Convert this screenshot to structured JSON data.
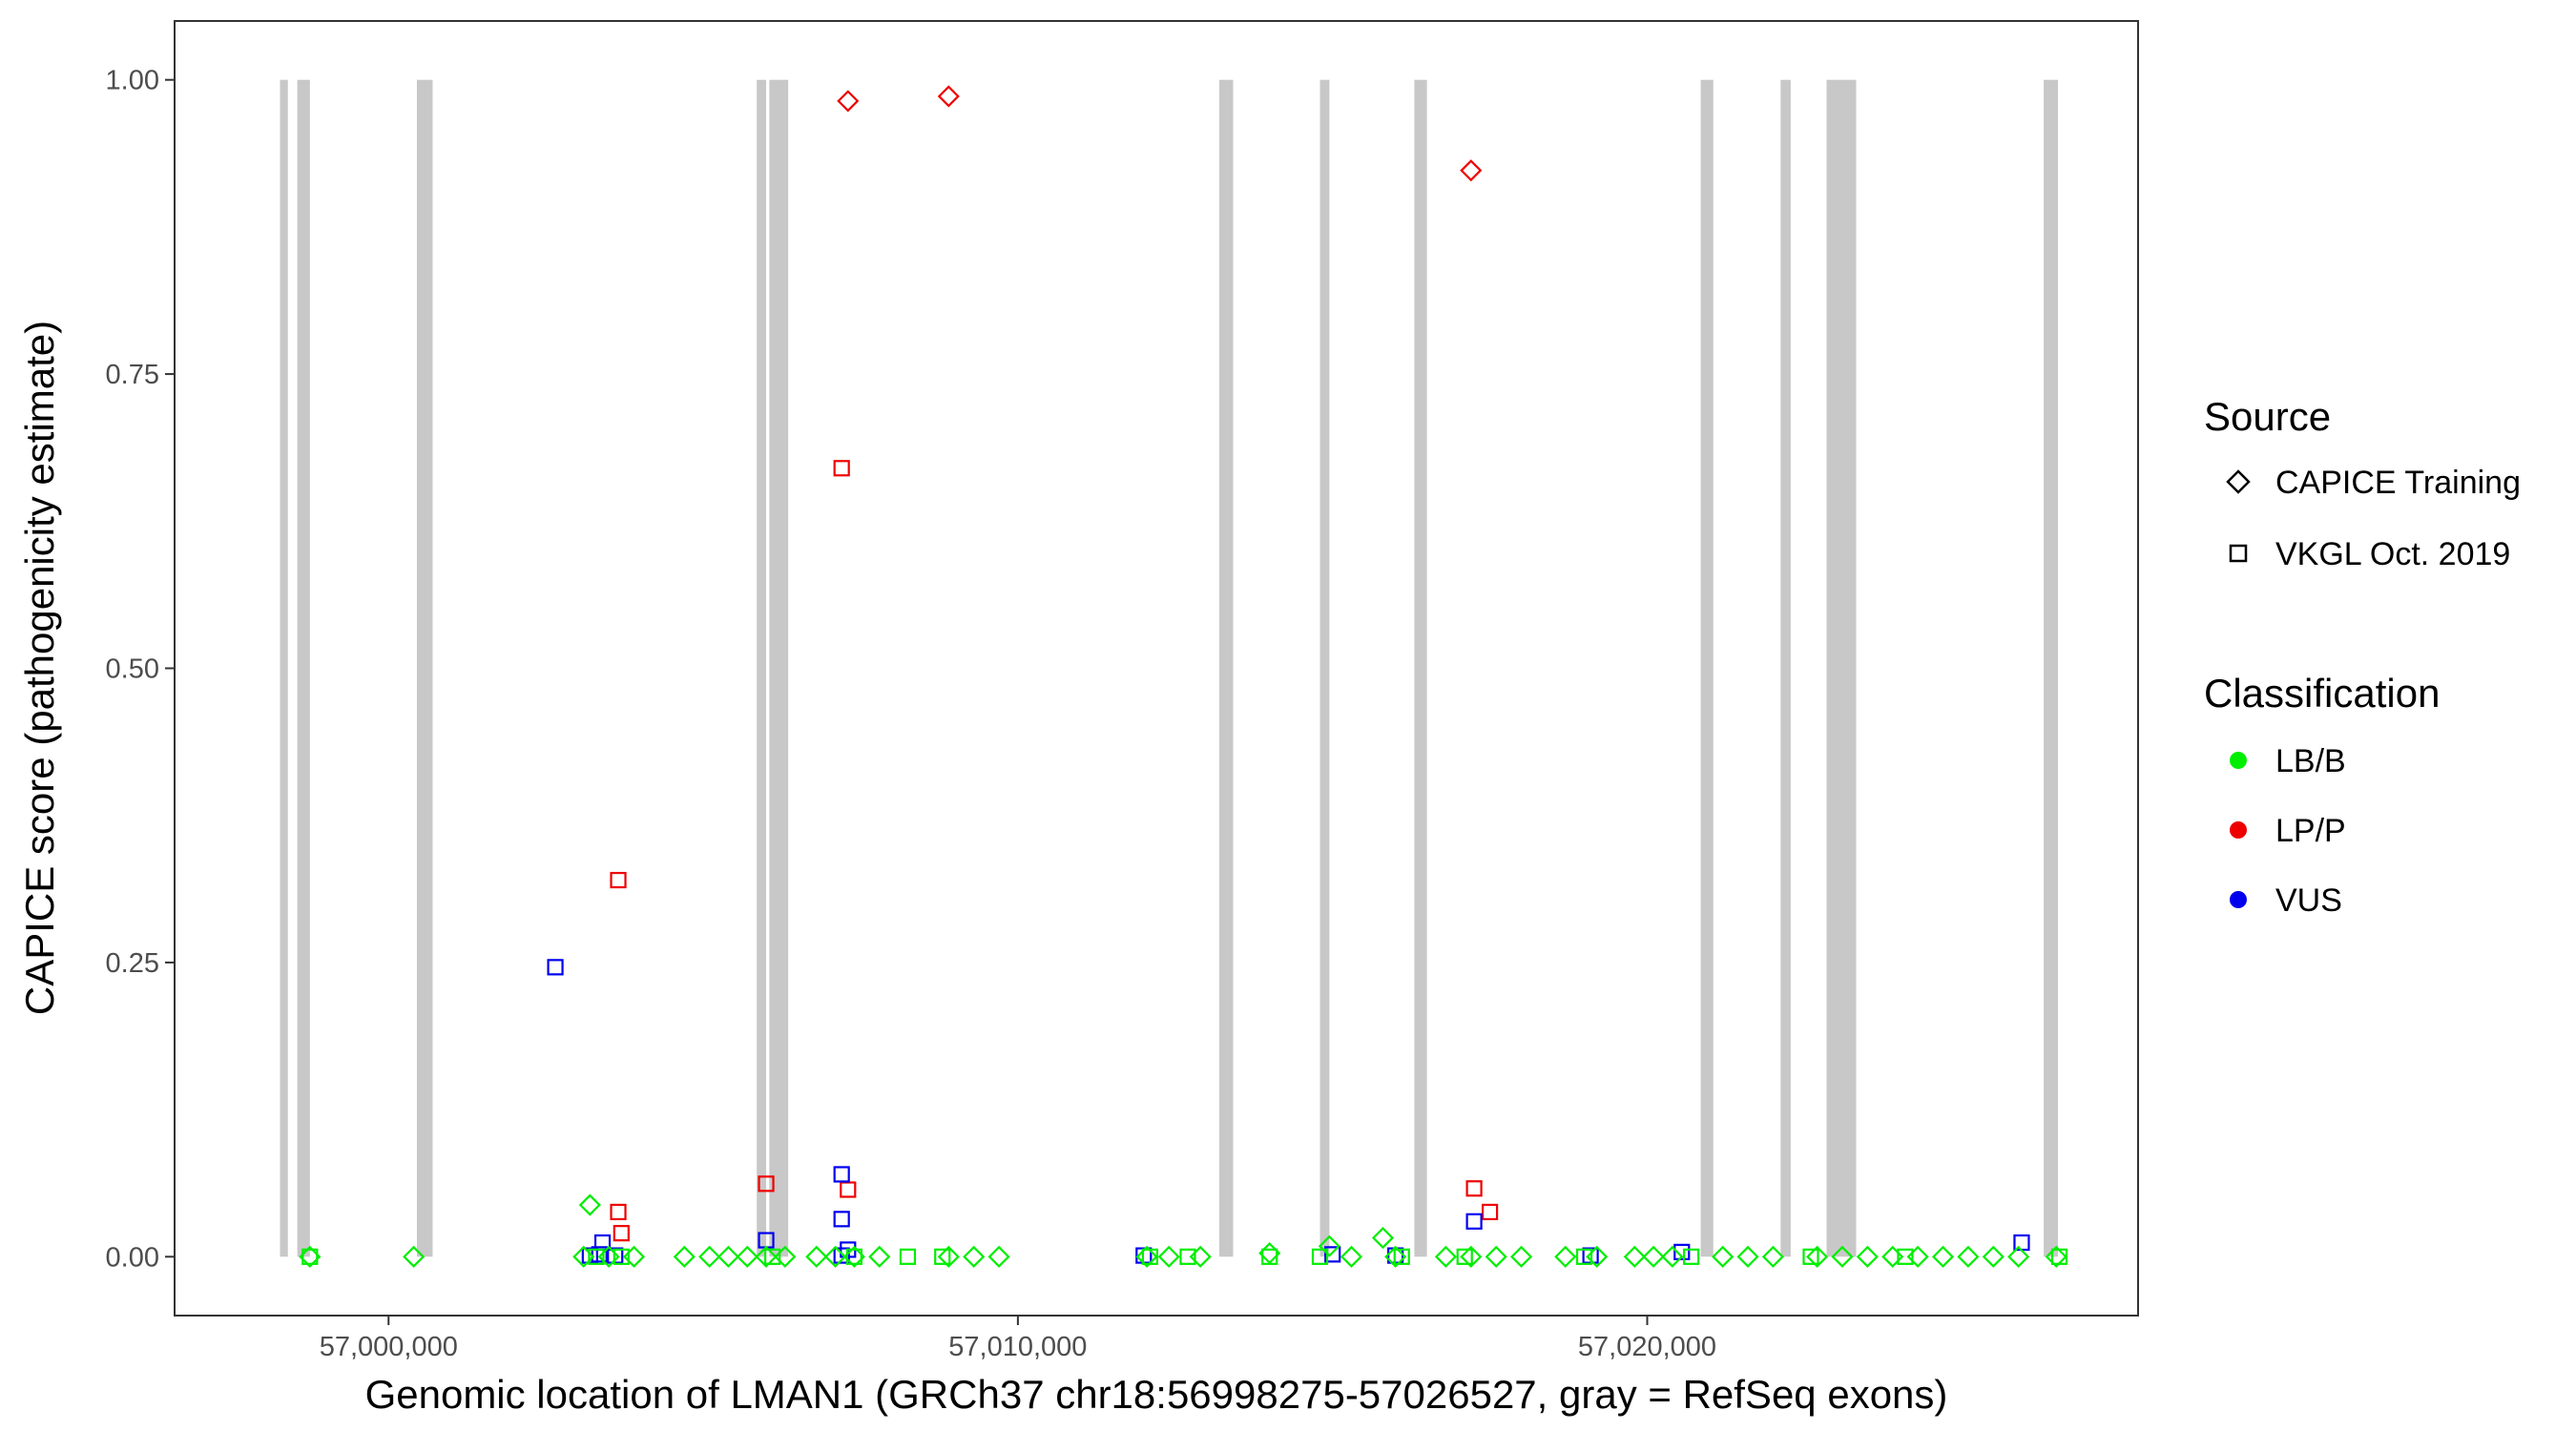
{
  "chart_data": {
    "type": "scatter",
    "xlabel": "Genomic location of LMAN1 (GRCh37 chr18:56998275-57026527, gray = RefSeq exons)",
    "ylabel": "CAPICE score (pathogenicity estimate)",
    "xlim": [
      56996600,
      57027800
    ],
    "ylim": [
      -0.05,
      1.05
    ],
    "x_ticks": [
      57000000,
      57010000,
      57020000
    ],
    "x_tick_labels": [
      "57,000,000",
      "57,010,000",
      "57,020,000"
    ],
    "y_ticks": [
      0,
      0.25,
      0.5,
      0.75,
      1
    ],
    "y_tick_labels": [
      "0.00",
      "0.25",
      "0.50",
      "0.75",
      "1.00"
    ],
    "grid": false,
    "exons": [
      [
        56998275,
        56998400
      ],
      [
        56998550,
        56998750
      ],
      [
        57000450,
        57000700
      ],
      [
        57005850,
        57006000
      ],
      [
        57006050,
        57006350
      ],
      [
        57013200,
        57013420
      ],
      [
        57014800,
        57014950
      ],
      [
        57016300,
        57016500
      ],
      [
        57020850,
        57021050
      ],
      [
        57022120,
        57022280
      ],
      [
        57022850,
        57023320
      ],
      [
        57026300,
        57026527
      ]
    ],
    "legend": {
      "placement": "right",
      "source": {
        "title": "Source",
        "entries": [
          {
            "label": "CAPICE Training",
            "shape": "diamond"
          },
          {
            "label": "VKGL Oct. 2019",
            "shape": "square"
          }
        ]
      },
      "classification": {
        "title": "Classification",
        "entries": [
          {
            "label": "LB/B",
            "color": "#00ee00"
          },
          {
            "label": "LP/P",
            "color": "#ee0000"
          },
          {
            "label": "VUS",
            "color": "#0000ee"
          }
        ]
      }
    },
    "series": [
      {
        "name": "CAPICE Training / LP/P",
        "shape": "diamond",
        "color": "#ee0000",
        "points": [
          {
            "x": 57007300,
            "y": 0.982
          },
          {
            "x": 57008900,
            "y": 0.986
          },
          {
            "x": 57017200,
            "y": 0.923
          }
        ]
      },
      {
        "name": "VKGL Oct. 2019 / LP/P",
        "shape": "square",
        "color": "#ee0000",
        "points": [
          {
            "x": 57007200,
            "y": 0.67
          },
          {
            "x": 57003650,
            "y": 0.32
          },
          {
            "x": 57003650,
            "y": 0.038
          },
          {
            "x": 57003700,
            "y": 0.02
          },
          {
            "x": 57006000,
            "y": 0.062
          },
          {
            "x": 57007300,
            "y": 0.057
          },
          {
            "x": 57017250,
            "y": 0.058
          },
          {
            "x": 57017500,
            "y": 0.038
          }
        ]
      },
      {
        "name": "VKGL Oct. 2019 / VUS",
        "shape": "square",
        "color": "#0000ee",
        "points": [
          {
            "x": 57002650,
            "y": 0.246
          },
          {
            "x": 57003400,
            "y": 0.012
          },
          {
            "x": 57003350,
            "y": 0.002
          },
          {
            "x": 57003600,
            "y": 0.001
          },
          {
            "x": 57003200,
            "y": 0.001
          },
          {
            "x": 57006000,
            "y": 0.014
          },
          {
            "x": 57007200,
            "y": 0.07
          },
          {
            "x": 57007200,
            "y": 0.032
          },
          {
            "x": 57007300,
            "y": 0.006
          },
          {
            "x": 57007200,
            "y": 0.001
          },
          {
            "x": 57012000,
            "y": 0.001
          },
          {
            "x": 57015000,
            "y": 0.002
          },
          {
            "x": 57016000,
            "y": 0.001
          },
          {
            "x": 57017250,
            "y": 0.03
          },
          {
            "x": 57019100,
            "y": 0.001
          },
          {
            "x": 57020550,
            "y": 0.004
          },
          {
            "x": 57025950,
            "y": 0.012
          }
        ]
      },
      {
        "name": "CAPICE Training / LB/B",
        "shape": "diamond",
        "color": "#00ee00",
        "points": [
          {
            "x": 56998750,
            "y": 0.0
          },
          {
            "x": 57000400,
            "y": 0.0
          },
          {
            "x": 57003200,
            "y": 0.044
          },
          {
            "x": 57003100,
            "y": 0.0
          },
          {
            "x": 57003500,
            "y": 0.0
          },
          {
            "x": 57003900,
            "y": 0.0
          },
          {
            "x": 57004700,
            "y": 0.0
          },
          {
            "x": 57005100,
            "y": 0.0
          },
          {
            "x": 57005400,
            "y": 0.0
          },
          {
            "x": 57005700,
            "y": 0.0
          },
          {
            "x": 57006000,
            "y": 0.0
          },
          {
            "x": 57006300,
            "y": 0.0
          },
          {
            "x": 57006800,
            "y": 0.0
          },
          {
            "x": 57007100,
            "y": 0.0
          },
          {
            "x": 57007400,
            "y": 0.0
          },
          {
            "x": 57007800,
            "y": 0.0
          },
          {
            "x": 57008900,
            "y": 0.0
          },
          {
            "x": 57009300,
            "y": 0.0
          },
          {
            "x": 57009700,
            "y": 0.0
          },
          {
            "x": 57012050,
            "y": 0.0
          },
          {
            "x": 57012400,
            "y": 0.0
          },
          {
            "x": 57012900,
            "y": 0.0
          },
          {
            "x": 57014000,
            "y": 0.003
          },
          {
            "x": 57014950,
            "y": 0.009
          },
          {
            "x": 57015300,
            "y": 0.0
          },
          {
            "x": 57015800,
            "y": 0.016
          },
          {
            "x": 57016000,
            "y": 0.0
          },
          {
            "x": 57016800,
            "y": 0.0
          },
          {
            "x": 57017200,
            "y": 0.0
          },
          {
            "x": 57017600,
            "y": 0.0
          },
          {
            "x": 57018000,
            "y": 0.0
          },
          {
            "x": 57018700,
            "y": 0.0
          },
          {
            "x": 57019200,
            "y": 0.0
          },
          {
            "x": 57019800,
            "y": 0.0
          },
          {
            "x": 57020100,
            "y": 0.0
          },
          {
            "x": 57020400,
            "y": 0.0
          },
          {
            "x": 57021200,
            "y": 0.0
          },
          {
            "x": 57021600,
            "y": 0.0
          },
          {
            "x": 57022000,
            "y": 0.0
          },
          {
            "x": 57022700,
            "y": 0.0
          },
          {
            "x": 57023100,
            "y": 0.0
          },
          {
            "x": 57023500,
            "y": 0.0
          },
          {
            "x": 57023900,
            "y": 0.0
          },
          {
            "x": 57024300,
            "y": 0.0
          },
          {
            "x": 57024700,
            "y": 0.0
          },
          {
            "x": 57025100,
            "y": 0.0
          },
          {
            "x": 57025500,
            "y": 0.0
          },
          {
            "x": 57025900,
            "y": 0.0
          },
          {
            "x": 57026500,
            "y": 0.0
          }
        ]
      },
      {
        "name": "VKGL Oct. 2019 / LB/B",
        "shape": "square",
        "color": "#00ee00",
        "points": [
          {
            "x": 56998750,
            "y": 0.0
          },
          {
            "x": 57003300,
            "y": 0.0
          },
          {
            "x": 57003700,
            "y": 0.0
          },
          {
            "x": 57006100,
            "y": 0.0
          },
          {
            "x": 57007400,
            "y": 0.0
          },
          {
            "x": 57008250,
            "y": 0.0
          },
          {
            "x": 57008800,
            "y": 0.0
          },
          {
            "x": 57012100,
            "y": 0.0
          },
          {
            "x": 57012700,
            "y": 0.0
          },
          {
            "x": 57014000,
            "y": 0.0
          },
          {
            "x": 57014800,
            "y": 0.0
          },
          {
            "x": 57016100,
            "y": 0.0
          },
          {
            "x": 57017100,
            "y": 0.0
          },
          {
            "x": 57019000,
            "y": 0.0
          },
          {
            "x": 57020700,
            "y": 0.0
          },
          {
            "x": 57022600,
            "y": 0.0
          },
          {
            "x": 57024100,
            "y": 0.0
          },
          {
            "x": 57026550,
            "y": 0.0
          }
        ]
      }
    ]
  }
}
